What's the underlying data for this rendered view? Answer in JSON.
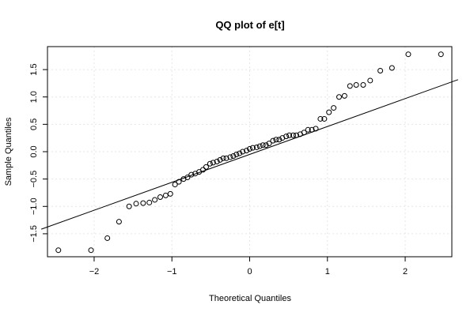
{
  "chart_data": {
    "type": "scatter",
    "title": "QQ plot of e[t]",
    "xlabel": "Theoretical Quantiles",
    "ylabel": "Sample Quantiles",
    "xlim": [
      -2.6,
      2.6
    ],
    "ylim": [
      -1.92,
      1.92
    ],
    "x_ticks": [
      -2,
      -1,
      0,
      1,
      2
    ],
    "y_ticks": [
      -1.5,
      -1.0,
      -0.5,
      0.0,
      0.5,
      1.0,
      1.5
    ],
    "x_tick_labels": [
      "−2",
      "−1",
      "0",
      "1",
      "2"
    ],
    "y_tick_labels": [
      "−1.5",
      "−1.0",
      "−0.5",
      "0.0",
      "0.5",
      "1.0",
      "1.5"
    ],
    "grid": true,
    "reference_line": {
      "slope": 0.51,
      "intercept": -0.05
    },
    "points": {
      "x": [
        -2.46,
        -2.04,
        -1.83,
        -1.68,
        -1.55,
        -1.46,
        -1.37,
        -1.29,
        -1.22,
        -1.15,
        -1.08,
        -1.02,
        -0.96,
        -0.91,
        -0.85,
        -0.8,
        -0.75,
        -0.7,
        -0.65,
        -0.6,
        -0.56,
        -0.51,
        -0.47,
        -0.42,
        -0.38,
        -0.34,
        -0.3,
        -0.25,
        -0.21,
        -0.17,
        -0.13,
        -0.09,
        -0.04,
        0.0,
        0.04,
        0.09,
        0.13,
        0.17,
        0.21,
        0.25,
        0.3,
        0.34,
        0.38,
        0.42,
        0.47,
        0.51,
        0.56,
        0.6,
        0.65,
        0.7,
        0.75,
        0.8,
        0.85,
        0.91,
        0.96,
        1.02,
        1.08,
        1.15,
        1.22,
        1.29,
        1.37,
        1.46,
        1.55,
        1.68,
        1.83,
        2.04,
        2.46
      ],
      "y": [
        -1.8,
        -1.8,
        -1.58,
        -1.28,
        -1.0,
        -0.95,
        -0.94,
        -0.93,
        -0.88,
        -0.83,
        -0.8,
        -0.77,
        -0.6,
        -0.55,
        -0.5,
        -0.47,
        -0.42,
        -0.4,
        -0.37,
        -0.33,
        -0.28,
        -0.22,
        -0.2,
        -0.18,
        -0.15,
        -0.12,
        -0.12,
        -0.1,
        -0.08,
        -0.05,
        -0.03,
        0.0,
        0.02,
        0.05,
        0.07,
        0.08,
        0.1,
        0.12,
        0.12,
        0.15,
        0.2,
        0.22,
        0.22,
        0.25,
        0.28,
        0.3,
        0.3,
        0.3,
        0.32,
        0.35,
        0.4,
        0.4,
        0.42,
        0.6,
        0.6,
        0.72,
        0.8,
        1.0,
        1.02,
        1.2,
        1.22,
        1.22,
        1.3,
        1.48,
        1.53,
        1.78,
        1.78
      ]
    }
  }
}
